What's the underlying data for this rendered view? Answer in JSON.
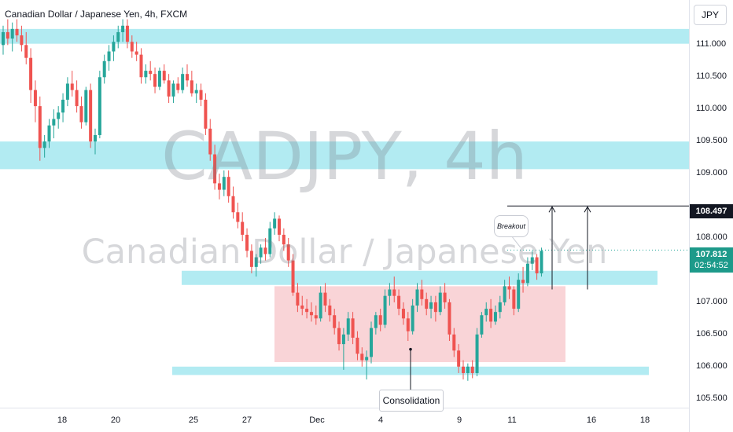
{
  "header": {
    "title": "Canadian Dollar / Japanese Yen, 4h, FXCM"
  },
  "watermark": {
    "symbol": "CADJPY, 4h",
    "name": "Canadian Dollar / Japanese Yen"
  },
  "axis": {
    "currency": "JPY"
  },
  "price_tags": {
    "target": "108.497",
    "last": "107.812",
    "countdown": "02:54:52"
  },
  "annotations": {
    "breakout": "Breakout",
    "consolidation": "Consolidation"
  },
  "colors": {
    "up": "#26a69a",
    "down": "#ef5350",
    "zone": "#b2ebf2",
    "range": "#f8cdd0",
    "text": "#131722"
  },
  "chart_data": {
    "type": "candlestick",
    "instrument": "CADJPY",
    "timeframe": "4h",
    "source": "FXCM",
    "y_ticks": [
      "111.000",
      "110.500",
      "110.000",
      "109.500",
      "109.000",
      "108.000",
      "107.500",
      "107.000",
      "106.500",
      "106.000",
      "105.500"
    ],
    "x_ticks": [
      "18",
      "20",
      "25",
      "27",
      "Dec",
      "4",
      "9",
      "11",
      "16",
      "18"
    ],
    "ylim": [
      105.35,
      111.7
    ],
    "zones": [
      {
        "low": 111.02,
        "high": 111.25,
        "kind": "resistance"
      },
      {
        "low": 109.07,
        "high": 109.5,
        "kind": "resistance"
      },
      {
        "low": 107.27,
        "high": 107.49,
        "kind": "support"
      },
      {
        "low": 105.87,
        "high": 106.0,
        "kind": "support"
      }
    ],
    "consolidation_range": {
      "low": 106.07,
      "high": 107.25
    },
    "target_level": 108.497,
    "last_price": 107.812,
    "ohlc": [
      [
        111.0,
        111.3,
        110.85,
        111.2
      ],
      [
        111.2,
        111.4,
        111.0,
        111.1
      ],
      [
        111.1,
        111.35,
        110.9,
        111.25
      ],
      [
        111.25,
        111.4,
        111.05,
        111.15
      ],
      [
        111.15,
        111.3,
        110.9,
        111.0
      ],
      [
        111.0,
        111.2,
        110.7,
        110.8
      ],
      [
        110.8,
        110.95,
        110.1,
        110.3
      ],
      [
        110.3,
        110.45,
        109.8,
        110.05
      ],
      [
        110.05,
        110.2,
        109.2,
        109.4
      ],
      [
        109.4,
        109.6,
        109.25,
        109.5
      ],
      [
        109.5,
        109.85,
        109.4,
        109.75
      ],
      [
        109.75,
        110.0,
        109.55,
        109.85
      ],
      [
        109.85,
        110.05,
        109.7,
        109.95
      ],
      [
        109.95,
        110.25,
        109.8,
        110.15
      ],
      [
        110.15,
        110.5,
        110.05,
        110.4
      ],
      [
        110.4,
        110.6,
        110.2,
        110.3
      ],
      [
        110.3,
        110.45,
        109.95,
        110.05
      ],
      [
        110.05,
        110.2,
        109.7,
        109.8
      ],
      [
        109.8,
        110.35,
        109.75,
        110.3
      ],
      [
        110.3,
        110.4,
        109.4,
        109.5
      ],
      [
        109.5,
        109.7,
        109.3,
        109.6
      ],
      [
        109.6,
        110.6,
        109.55,
        110.5
      ],
      [
        110.5,
        110.85,
        110.4,
        110.75
      ],
      [
        110.75,
        111.0,
        110.6,
        110.9
      ],
      [
        110.9,
        111.15,
        110.75,
        111.05
      ],
      [
        111.05,
        111.3,
        110.95,
        111.2
      ],
      [
        111.2,
        111.4,
        111.05,
        111.3
      ],
      [
        111.3,
        111.4,
        110.95,
        111.05
      ],
      [
        111.05,
        111.15,
        110.8,
        110.9
      ],
      [
        110.9,
        111.05,
        110.75,
        110.85
      ],
      [
        110.85,
        110.95,
        110.4,
        110.5
      ],
      [
        110.5,
        110.7,
        110.4,
        110.6
      ],
      [
        110.6,
        110.75,
        110.45,
        110.55
      ],
      [
        110.55,
        110.65,
        110.25,
        110.35
      ],
      [
        110.35,
        110.65,
        110.3,
        110.6
      ],
      [
        110.6,
        110.7,
        110.4,
        110.45
      ],
      [
        110.45,
        110.55,
        110.1,
        110.2
      ],
      [
        110.2,
        110.45,
        110.1,
        110.4
      ],
      [
        110.4,
        110.5,
        110.25,
        110.3
      ],
      [
        110.3,
        110.65,
        110.25,
        110.55
      ],
      [
        110.55,
        110.7,
        110.35,
        110.45
      ],
      [
        110.45,
        110.6,
        110.2,
        110.25
      ],
      [
        110.25,
        110.4,
        110.1,
        110.3
      ],
      [
        110.3,
        110.4,
        110.05,
        110.15
      ],
      [
        110.15,
        110.25,
        109.6,
        109.7
      ],
      [
        109.7,
        109.85,
        109.2,
        109.3
      ],
      [
        109.3,
        109.45,
        108.75,
        108.85
      ],
      [
        108.85,
        109.0,
        108.6,
        108.75
      ],
      [
        108.75,
        109.05,
        108.65,
        108.95
      ],
      [
        108.95,
        109.05,
        108.55,
        108.65
      ],
      [
        108.65,
        108.8,
        108.3,
        108.4
      ],
      [
        108.4,
        108.55,
        108.15,
        108.25
      ],
      [
        108.25,
        108.4,
        107.95,
        108.05
      ],
      [
        108.05,
        108.15,
        107.7,
        107.8
      ],
      [
        107.8,
        107.9,
        107.45,
        107.55
      ],
      [
        107.55,
        107.75,
        107.4,
        107.7
      ],
      [
        107.7,
        107.9,
        107.6,
        107.85
      ],
      [
        107.85,
        108.0,
        107.65,
        107.75
      ],
      [
        107.75,
        108.25,
        107.7,
        108.15
      ],
      [
        108.15,
        108.4,
        108.05,
        108.3
      ],
      [
        108.3,
        108.35,
        107.95,
        108.05
      ],
      [
        108.05,
        108.15,
        107.8,
        107.9
      ],
      [
        107.9,
        108.0,
        107.55,
        107.65
      ],
      [
        107.65,
        107.75,
        107.1,
        107.15
      ],
      [
        107.15,
        107.3,
        106.85,
        106.95
      ],
      [
        106.95,
        107.1,
        106.8,
        106.9
      ],
      [
        106.9,
        107.05,
        106.75,
        106.85
      ],
      [
        106.85,
        107.0,
        106.7,
        106.8
      ],
      [
        106.8,
        106.95,
        106.65,
        106.75
      ],
      [
        106.75,
        107.25,
        106.7,
        107.15
      ],
      [
        107.15,
        107.3,
        106.85,
        106.95
      ],
      [
        106.95,
        107.05,
        106.7,
        106.8
      ],
      [
        106.8,
        106.9,
        106.5,
        106.6
      ],
      [
        106.6,
        106.7,
        106.25,
        106.35
      ],
      [
        106.35,
        106.6,
        105.95,
        106.5
      ],
      [
        106.5,
        106.85,
        106.4,
        106.75
      ],
      [
        106.75,
        106.85,
        106.35,
        106.45
      ],
      [
        106.45,
        106.55,
        106.1,
        106.2
      ],
      [
        106.2,
        106.3,
        106.0,
        106.1
      ],
      [
        106.1,
        106.25,
        105.8,
        106.15
      ],
      [
        106.15,
        106.7,
        106.05,
        106.6
      ],
      [
        106.6,
        106.85,
        106.5,
        106.8
      ],
      [
        106.8,
        106.9,
        106.55,
        106.65
      ],
      [
        106.65,
        107.2,
        106.6,
        107.1
      ],
      [
        107.1,
        107.3,
        106.95,
        107.2
      ],
      [
        107.2,
        107.4,
        107.0,
        107.1
      ],
      [
        107.1,
        107.2,
        106.8,
        106.9
      ],
      [
        106.9,
        107.0,
        106.65,
        106.75
      ],
      [
        106.75,
        106.85,
        106.4,
        106.55
      ],
      [
        106.55,
        107.05,
        106.5,
        106.95
      ],
      [
        106.95,
        107.3,
        106.85,
        107.2
      ],
      [
        107.2,
        107.35,
        106.95,
        107.05
      ],
      [
        107.05,
        107.15,
        106.8,
        106.9
      ],
      [
        106.9,
        107.1,
        106.75,
        107.0
      ],
      [
        107.0,
        107.1,
        106.7,
        106.85
      ],
      [
        106.85,
        107.25,
        106.8,
        107.15
      ],
      [
        107.15,
        107.3,
        106.9,
        107.0
      ],
      [
        107.0,
        107.05,
        106.4,
        106.5
      ],
      [
        106.5,
        106.6,
        106.15,
        106.25
      ],
      [
        106.25,
        106.35,
        105.9,
        106.0
      ],
      [
        106.0,
        106.1,
        105.8,
        105.9
      ],
      [
        105.9,
        106.05,
        105.78,
        106.0
      ],
      [
        106.0,
        106.1,
        105.82,
        105.9
      ],
      [
        105.9,
        106.6,
        105.85,
        106.5
      ],
      [
        106.5,
        106.85,
        106.45,
        106.8
      ],
      [
        106.8,
        107.0,
        106.7,
        106.9
      ],
      [
        106.9,
        107.05,
        106.6,
        106.7
      ],
      [
        106.7,
        106.95,
        106.65,
        106.85
      ],
      [
        106.85,
        107.1,
        106.75,
        107.0
      ],
      [
        107.0,
        107.35,
        106.95,
        107.25
      ],
      [
        107.25,
        107.4,
        107.05,
        107.2
      ],
      [
        107.2,
        107.25,
        106.8,
        106.9
      ],
      [
        106.9,
        107.45,
        106.85,
        107.35
      ],
      [
        107.35,
        107.55,
        107.15,
        107.3
      ],
      [
        107.3,
        107.7,
        107.25,
        107.6
      ],
      [
        107.6,
        107.8,
        107.5,
        107.7
      ],
      [
        107.7,
        107.75,
        107.35,
        107.45
      ],
      [
        107.45,
        107.85,
        107.4,
        107.8
      ]
    ]
  }
}
